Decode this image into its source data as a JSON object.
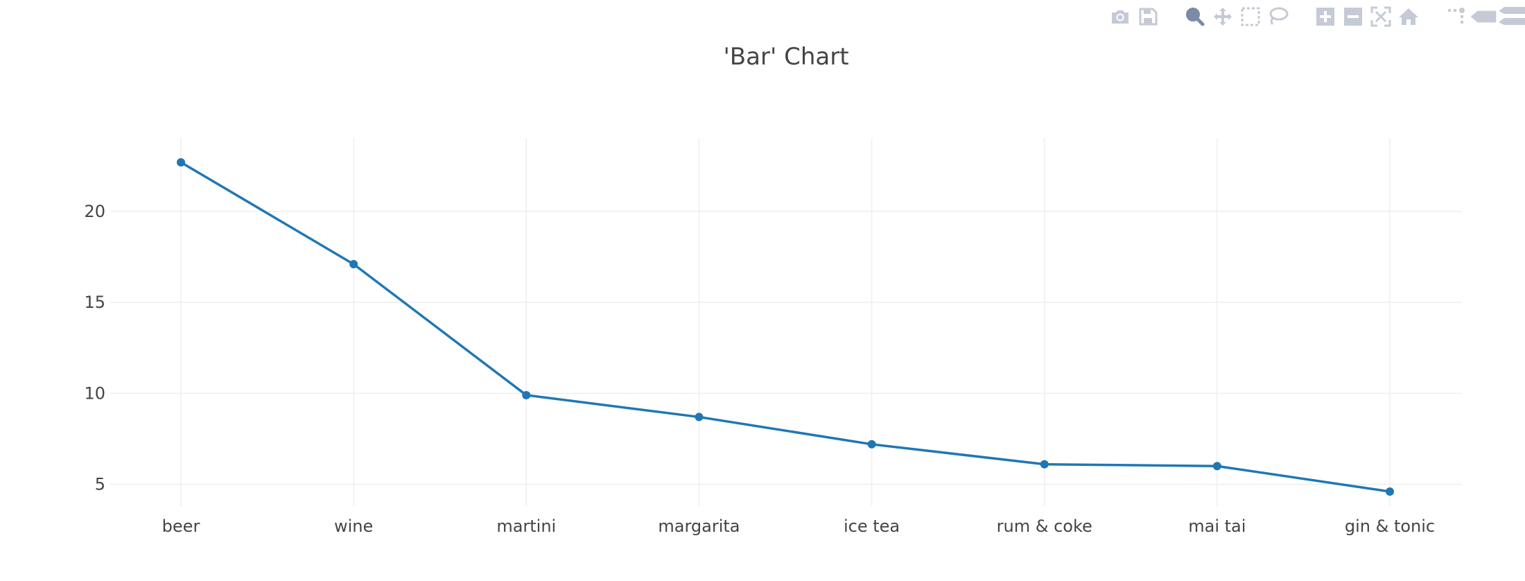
{
  "modebar": {
    "buttons": [
      {
        "name": "download-plot-button",
        "icon": "camera-icon"
      },
      {
        "name": "save-button",
        "icon": "save-icon"
      },
      {
        "name": "zoom-button",
        "icon": "zoom-icon"
      },
      {
        "name": "pan-button",
        "icon": "pan-icon"
      },
      {
        "name": "box-select-button",
        "icon": "box-select-icon"
      },
      {
        "name": "lasso-select-button",
        "icon": "lasso-icon"
      },
      {
        "name": "zoom-in-button",
        "icon": "plus-icon"
      },
      {
        "name": "zoom-out-button",
        "icon": "minus-icon"
      },
      {
        "name": "autoscale-button",
        "icon": "autoscale-icon"
      },
      {
        "name": "reset-axes-button",
        "icon": "home-icon"
      },
      {
        "name": "toggle-spike-lines-button",
        "icon": "spike-lines-icon"
      },
      {
        "name": "show-closest-hover-button",
        "icon": "hover-closest-icon"
      },
      {
        "name": "compare-hover-button",
        "icon": "hover-compare-icon"
      }
    ],
    "colors": {
      "icon": "#c5cad6",
      "active": "#7d8aa6"
    }
  },
  "chart_data": {
    "type": "line",
    "title": "'Bar' Chart",
    "xlabel": "",
    "ylabel": "",
    "categories": [
      "beer",
      "wine",
      "martini",
      "margarita",
      "ice tea",
      "rum & coke",
      "mai tai",
      "gin & tonic"
    ],
    "series": [
      {
        "values": [
          22.7,
          17.1,
          9.9,
          8.7,
          7.2,
          6.1,
          6.0,
          4.6
        ]
      }
    ],
    "y_ticks": [
      5,
      10,
      15,
      20
    ],
    "ylim": [
      3.8,
      24.0
    ],
    "markers": true,
    "grid": true,
    "legend": "none",
    "colors": {
      "line": "#1f77b4",
      "grid": "#eeeeee",
      "text": "#444444"
    }
  }
}
